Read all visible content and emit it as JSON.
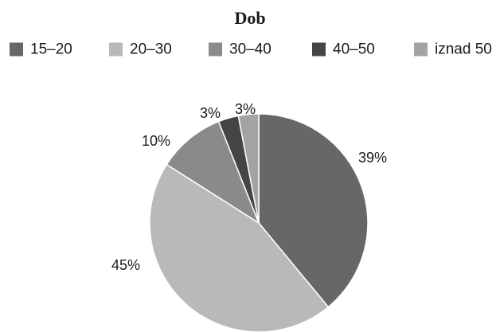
{
  "chart_data": {
    "type": "pie",
    "title": "Dob",
    "legend_position": "top",
    "categories": [
      "15–20",
      "20–30",
      "30–40",
      "40–50",
      "iznad 50"
    ],
    "values": [
      39,
      45,
      10,
      3,
      3
    ],
    "data_labels": [
      "39%",
      "45%",
      "10%",
      "3%",
      "3%"
    ],
    "colors": [
      "#676767",
      "#b9b9b9",
      "#8a8a8a",
      "#454545",
      "#a3a3a3"
    ],
    "start_angle_deg": 0,
    "direction": "clockwise"
  }
}
